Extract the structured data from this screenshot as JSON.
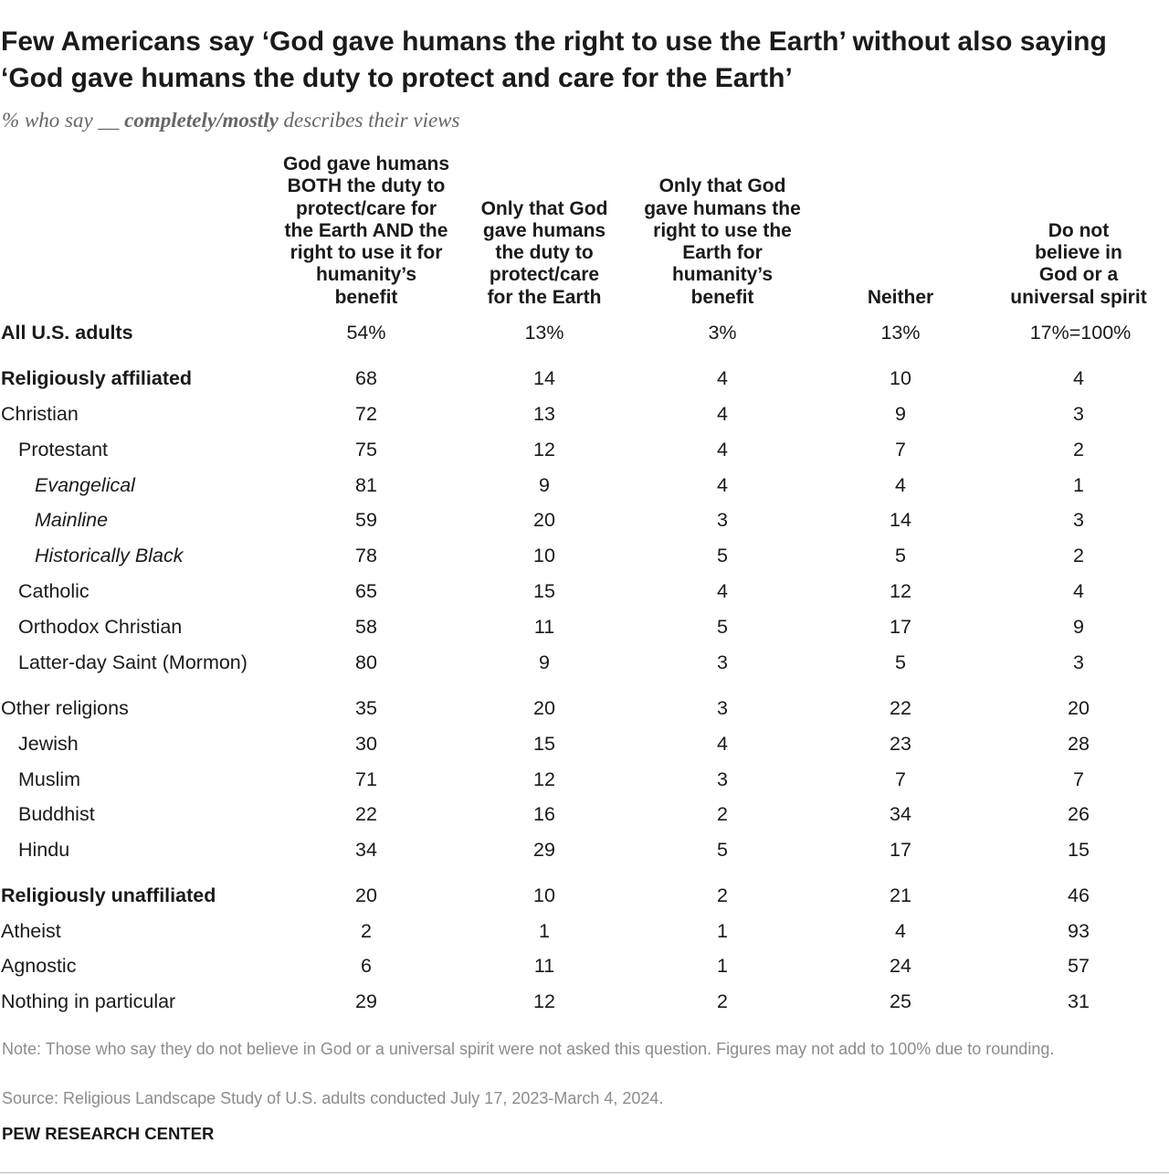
{
  "title": "Few Americans say ‘God gave humans the right to use the Earth’ without also saying ‘God gave humans the duty to protect and care for the Earth’",
  "subtitle": {
    "pre": "% who say __ ",
    "emphasis": "completely/mostly",
    "post": " describes their views"
  },
  "chart_data": {
    "type": "table",
    "title": "Few Americans say ‘God gave humans the right to use the Earth’ without also saying ‘God gave humans the duty to protect and care for the Earth’",
    "subtitle": "% who say __ completely/mostly describes their views",
    "columns": [
      "God gave humans BOTH the duty to protect/care for the Earth AND the right to use it for humanity’s benefit",
      "Only that God gave humans the duty to protect/care for the Earth",
      "Only that God gave humans the right to use the Earth for humanity’s benefit",
      "Neither",
      "Do not believe in God or a universal spirit"
    ],
    "rows": [
      {
        "label": "All U.S. adults",
        "style": "bold",
        "indent": 0,
        "values": [
          "54%",
          "13%",
          "3%",
          "13%",
          "17%=100%"
        ]
      },
      {
        "label": "Religiously affiliated",
        "style": "bold",
        "indent": 0,
        "values": [
          "68",
          "14",
          "4",
          "10",
          "4"
        ]
      },
      {
        "label": "Christian",
        "style": "normal",
        "indent": 0,
        "values": [
          "72",
          "13",
          "4",
          "9",
          "3"
        ]
      },
      {
        "label": "Protestant",
        "style": "normal",
        "indent": 1,
        "values": [
          "75",
          "12",
          "4",
          "7",
          "2"
        ]
      },
      {
        "label": "Evangelical",
        "style": "italic",
        "indent": 2,
        "values": [
          "81",
          "9",
          "4",
          "4",
          "1"
        ]
      },
      {
        "label": "Mainline",
        "style": "italic",
        "indent": 2,
        "values": [
          "59",
          "20",
          "3",
          "14",
          "3"
        ]
      },
      {
        "label": "Historically Black",
        "style": "italic",
        "indent": 2,
        "values": [
          "78",
          "10",
          "5",
          "5",
          "2"
        ]
      },
      {
        "label": "Catholic",
        "style": "normal",
        "indent": 1,
        "values": [
          "65",
          "15",
          "4",
          "12",
          "4"
        ]
      },
      {
        "label": "Orthodox Christian",
        "style": "normal",
        "indent": 1,
        "values": [
          "58",
          "11",
          "5",
          "17",
          "9"
        ]
      },
      {
        "label": "Latter-day Saint (Mormon)",
        "style": "normal",
        "indent": 1,
        "values": [
          "80",
          "9",
          "3",
          "5",
          "3"
        ]
      },
      {
        "label": "Other religions",
        "style": "normal",
        "indent": 0,
        "values": [
          "35",
          "20",
          "3",
          "22",
          "20"
        ]
      },
      {
        "label": "Jewish",
        "style": "normal",
        "indent": 1,
        "values": [
          "30",
          "15",
          "4",
          "23",
          "28"
        ]
      },
      {
        "label": "Muslim",
        "style": "normal",
        "indent": 1,
        "values": [
          "71",
          "12",
          "3",
          "7",
          "7"
        ]
      },
      {
        "label": "Buddhist",
        "style": "normal",
        "indent": 1,
        "values": [
          "22",
          "16",
          "2",
          "34",
          "26"
        ]
      },
      {
        "label": "Hindu",
        "style": "normal",
        "indent": 1,
        "values": [
          "34",
          "29",
          "5",
          "17",
          "15"
        ]
      },
      {
        "label": "Religiously unaffiliated",
        "style": "bold",
        "indent": 0,
        "values": [
          "20",
          "10",
          "2",
          "21",
          "46"
        ]
      },
      {
        "label": "Atheist",
        "style": "normal",
        "indent": 0,
        "values": [
          "2",
          "1",
          "1",
          "4",
          "93"
        ]
      },
      {
        "label": "Agnostic",
        "style": "normal",
        "indent": 0,
        "values": [
          "6",
          "11",
          "1",
          "24",
          "57"
        ]
      },
      {
        "label": "Nothing in particular",
        "style": "normal",
        "indent": 0,
        "values": [
          "29",
          "12",
          "2",
          "25",
          "31"
        ]
      }
    ]
  },
  "column_header_lines": [
    [
      "God gave humans",
      "BOTH the duty to",
      "protect/care for",
      "the Earth AND the",
      "right to use it for",
      "humanity’s",
      "benefit"
    ],
    [
      "Only that God",
      "gave humans",
      "the duty to",
      "protect/care",
      "for the Earth"
    ],
    [
      "Only that God",
      "gave humans the",
      "right to use the",
      "Earth for",
      "humanity’s",
      "benefit"
    ],
    [
      "Neither"
    ],
    [
      "Do not",
      "believe in",
      "God or a",
      "universal spirit"
    ]
  ],
  "footer": {
    "note": "Note: Those who say they do not believe in God or a universal spirit were not asked this question. Figures may not add to 100% due to rounding.",
    "source": "Source: Religious Landscape Study of U.S. adults conducted July 17, 2023-March 4, 2024.",
    "organization": "PEW RESEARCH CENTER"
  },
  "colors": {
    "text": "#1a1a1a",
    "muted": "#8c8c8c",
    "subtitle": "#666666"
  }
}
